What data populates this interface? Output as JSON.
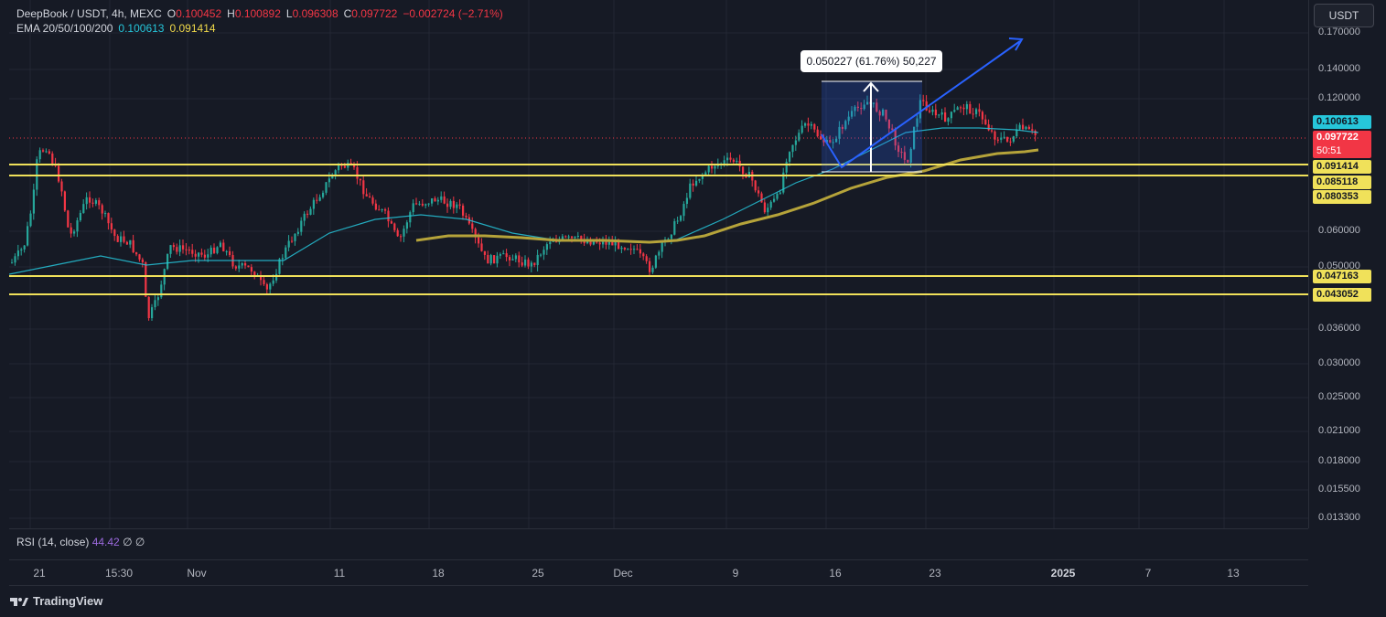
{
  "legend": {
    "symbol": "DeepBook / USDT, 4h, MEXC",
    "o_label": "O",
    "o_value": "0.100452",
    "h_label": "H",
    "h_value": "0.100892",
    "l_label": "L",
    "l_value": "0.096308",
    "c_label": "C",
    "c_value": "0.097722",
    "change": "−0.002724 (−2.71%)",
    "ema_label": "EMA 20/50/100/200",
    "ema_v1": "0.100613",
    "ema_v2": "0.091414"
  },
  "currency_button": "USDT",
  "price_axis": {
    "ticks": [
      "0.170000",
      "0.140000",
      "0.120000",
      "0.060000",
      "0.050000",
      "0.036000",
      "0.030000",
      "0.025000",
      "0.021000",
      "0.018000",
      "0.015500",
      "0.013300"
    ],
    "labels": {
      "ema_fast": "0.100613",
      "last_price": "0.097722",
      "countdown": "50:51",
      "ema_slow": "0.091414",
      "level_1": "0.085118",
      "level_2": "0.080353",
      "level_3": "0.047163",
      "level_4": "0.043052"
    }
  },
  "measure": {
    "text": "0.050227 (61.76%) 50,227"
  },
  "rsi": {
    "label": "RSI (14, close)",
    "value": "44.42",
    "extra": "∅ ∅"
  },
  "time_axis": [
    "21",
    "15:30",
    "Nov",
    "11",
    "18",
    "25",
    "Dec",
    "9",
    "16",
    "23",
    "2025",
    "7",
    "13"
  ],
  "footer": {
    "brand": "TradingView"
  },
  "colors": {
    "up": "#26a69a",
    "down": "#f23645",
    "ema_fast": "#26c6da",
    "ema_slow": "#b5a33a",
    "level": "#f0e15a",
    "arrow": "#2962ff"
  }
}
